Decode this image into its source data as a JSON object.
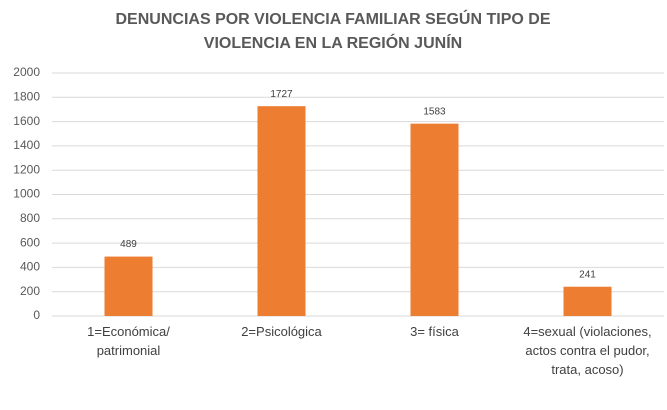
{
  "chart_data": {
    "type": "bar",
    "title": "DENUNCIAS POR VIOLENCIA FAMILIAR SEGÚN TIPO DE VIOLENCIA EN LA REGIÓN JUNÍN",
    "categories": [
      "1=Económica/ patrimonial",
      "2=Psicológica",
      "3= física",
      "4=sexual (violaciones, actos contra el pudor, trata, acoso)"
    ],
    "values": [
      489,
      1727,
      1583,
      241
    ],
    "color": "#ed7d31",
    "ylim": [
      0,
      2000
    ],
    "yticks": [
      0,
      200,
      400,
      600,
      800,
      1000,
      1200,
      1400,
      1600,
      1800,
      2000
    ],
    "grid": true
  }
}
